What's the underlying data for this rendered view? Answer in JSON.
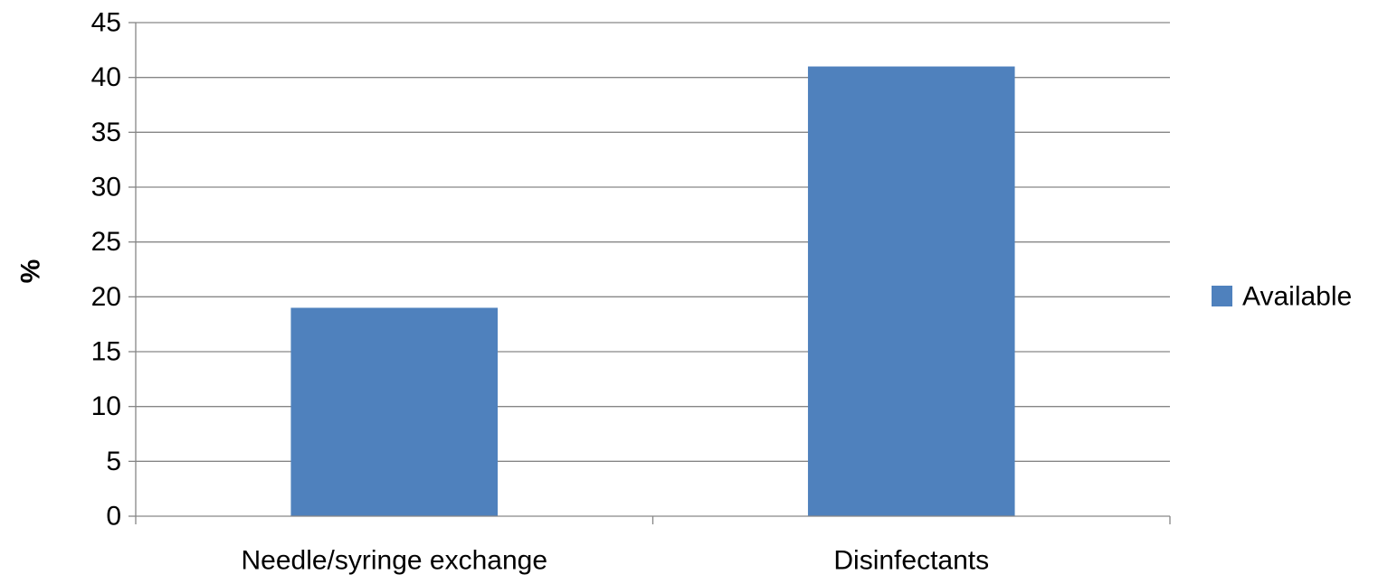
{
  "chart_data": {
    "type": "bar",
    "title": "",
    "xlabel": "",
    "ylabel": "%",
    "categories": [
      "Needle/syringe exchange",
      "Disinfectants"
    ],
    "series": [
      {
        "name": "Available",
        "values": [
          19,
          41
        ],
        "color": "#4F81BD"
      }
    ],
    "ylim": [
      0,
      45
    ],
    "yticks": [
      0,
      5,
      10,
      15,
      20,
      25,
      30,
      35,
      40,
      45
    ],
    "ytick_labels": [
      "0",
      "5",
      "10",
      "15",
      "20",
      "25",
      "30",
      "35",
      "40",
      "45"
    ],
    "grid": true,
    "legend": "right",
    "colors": {
      "grid": "#868686",
      "axis": "#868686"
    }
  }
}
